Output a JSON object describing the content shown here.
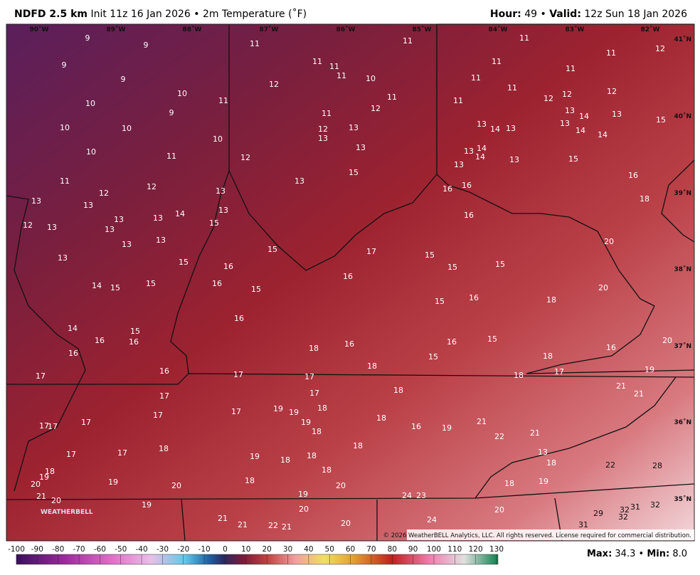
{
  "header": {
    "model": "NDFD 2.5 km",
    "init": "Init 11z 16 Jan 2026",
    "separator": "•",
    "parameter": "2m Temperature (˚F)",
    "hour_label": "Hour:",
    "hour": "49",
    "valid_label": "Valid:",
    "valid": "12z Sun 18 Jan 2026"
  },
  "map": {
    "lon_labels": [
      "90˚W",
      "89˚W",
      "88˚W",
      "87˚W",
      "86˚W",
      "85˚W",
      "84˚W",
      "83˚W",
      "82˚W"
    ],
    "lat_labels": [
      "41˚N",
      "40˚N",
      "39˚N",
      "38˚N",
      "37˚N",
      "36˚N",
      "35˚N"
    ],
    "logo": "WEATHERBELL",
    "copyright": "© 2026 WeatherBELL Analytics, LLC. All rights reserved. License required for commercial distribution.",
    "station_values": [
      9,
      9,
      9,
      9,
      10,
      10,
      9,
      11,
      10,
      10,
      10,
      10,
      11,
      11,
      12,
      12,
      13,
      13,
      13,
      13,
      13,
      14,
      13,
      12,
      13,
      13,
      15,
      13,
      13,
      13,
      15,
      14,
      15,
      15,
      16,
      16,
      14,
      15,
      16,
      16,
      16,
      17,
      16,
      17,
      17,
      17,
      17,
      17,
      17,
      17,
      18,
      18,
      19,
      20,
      19,
      21,
      20,
      20,
      19,
      11,
      12,
      11,
      11,
      11,
      10,
      11,
      11,
      12,
      11,
      12,
      13,
      13,
      13,
      12,
      13,
      15,
      15,
      15,
      16,
      16,
      17,
      18,
      16,
      18,
      17,
      17,
      17,
      18,
      19,
      19,
      17,
      19,
      18,
      18,
      19,
      18,
      18,
      18,
      18,
      19,
      20,
      20,
      20,
      21,
      21,
      22,
      21,
      24,
      23,
      24,
      11,
      11,
      11,
      11,
      11,
      11,
      12,
      12,
      12,
      12,
      11,
      13,
      14,
      13,
      15,
      13,
      14,
      13,
      13,
      14,
      14,
      13,
      14,
      14,
      13,
      13,
      15,
      16,
      16,
      16,
      18,
      16,
      15,
      15,
      15,
      20,
      20,
      16,
      15,
      18,
      16,
      15,
      15,
      18,
      16,
      20,
      18,
      17,
      19,
      21,
      21,
      18,
      18,
      16,
      19,
      21,
      22,
      21,
      13,
      18,
      18,
      19,
      22,
      28,
      20,
      29,
      32,
      31,
      32,
      32,
      31
    ]
  },
  "colorbar": {
    "ticks": [
      -100,
      -90,
      -80,
      -70,
      -60,
      -50,
      -40,
      -30,
      -20,
      -10,
      0,
      10,
      20,
      30,
      40,
      50,
      60,
      70,
      80,
      90,
      100,
      110,
      120,
      130
    ]
  },
  "footer": {
    "max_label": "Max:",
    "max": "34.3",
    "separator": "•",
    "min_label": "Min:",
    "min": "8.0"
  }
}
